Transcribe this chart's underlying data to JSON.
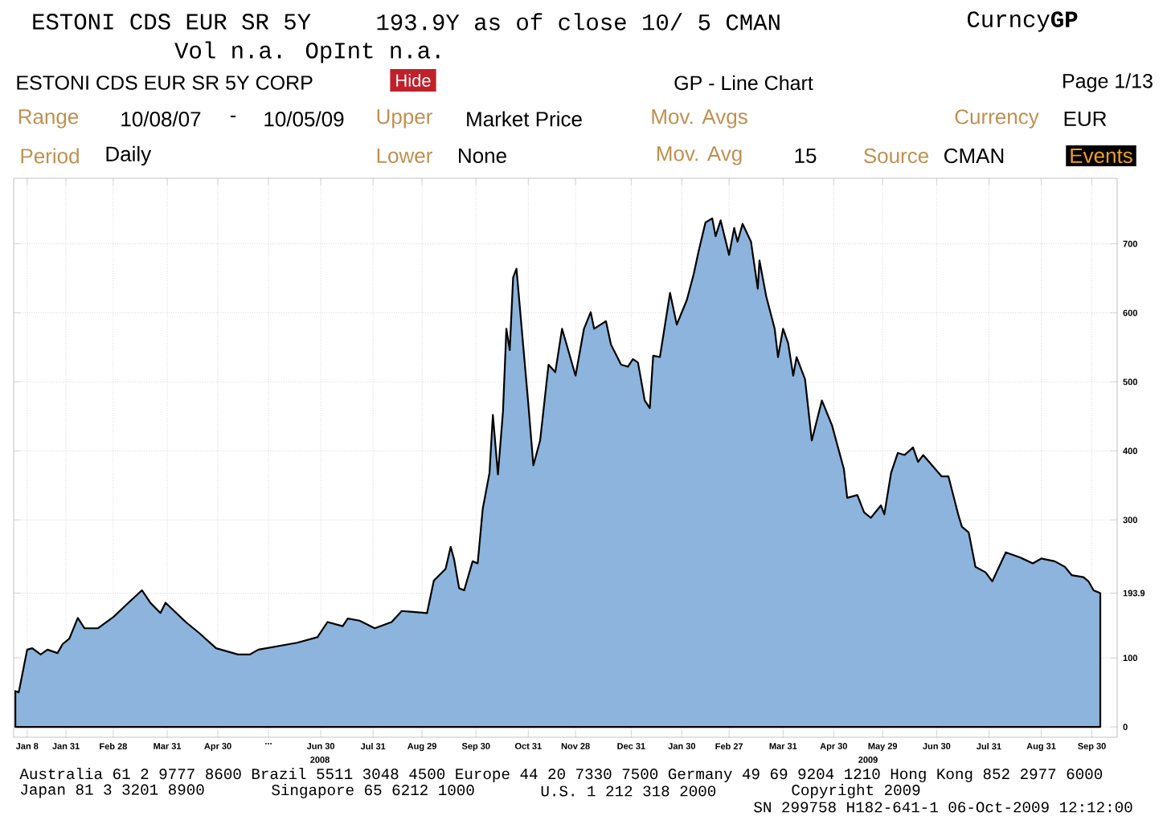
{
  "chart_data": {
    "type": "area",
    "title": "ESTONI CDS EUR SR 5Y",
    "subtitle": "Vol n.a. OpInt n.a.",
    "annotations": [
      "193.9Y as of close 10/ 5 CMAN",
      "Curncy**GP**",
      "ESTONI CDS EUR SR 5Y CORP",
      "Hide",
      "GP - Line Chart",
      "Page 1/13",
      "Range",
      "10/08/07",
      "-",
      "10/05/09",
      "Upper",
      "Market Price",
      "Mov. Avgs",
      "Currency",
      "EUR",
      "Period",
      "Daily",
      "Lower",
      "None",
      "Mov. Avg",
      "15",
      "Source",
      "CMAN",
      "Events",
      "Australia 61 2 9777 8600 Brazil 5511 3048 4500 Europe 44 20 7330 7500 Germany 49 69 9204 1210 Hong Kong 852 2977 6000",
      "Japan 81 3 3201 8900",
      "Singapore 65 6212 1000",
      "U.S. 1 212 318 2000",
      "Copyright 2009",
      "SN 299758 H182-641-1 06-Oct-2009 12:12:00",
      "2008",
      "2009"
    ],
    "xlim": [
      "2007-12-31",
      "2009-10-15"
    ],
    "ylim": [
      -15,
      795
    ],
    "xticks": [
      {
        "value": "2008-01-08",
        "label": "Jan 8"
      },
      {
        "value": "2008-01-31",
        "label": "Jan 31"
      },
      {
        "value": "2008-02-28",
        "label": "Feb 28"
      },
      {
        "value": "2008-03-31",
        "label": "Mar 31"
      },
      {
        "value": "2008-04-30",
        "label": "Apr 30"
      },
      {
        "value": "2008-05-30",
        "label": "..."
      },
      {
        "value": "2008-06-30",
        "label": "Jun 30"
      },
      {
        "value": "2008-07-31",
        "label": "Jul 31"
      },
      {
        "value": "2008-08-29",
        "label": "Aug 29"
      },
      {
        "value": "2008-09-30",
        "label": "Sep 30"
      },
      {
        "value": "2008-10-31",
        "label": "Oct 31"
      },
      {
        "value": "2008-11-28",
        "label": "Nov 28"
      },
      {
        "value": "2008-12-31",
        "label": "Dec 31"
      },
      {
        "value": "2009-01-30",
        "label": "Jan 30"
      },
      {
        "value": "2009-02-27",
        "label": "Feb 27"
      },
      {
        "value": "2009-03-31",
        "label": "Mar 31"
      },
      {
        "value": "2009-04-30",
        "label": "Apr 30"
      },
      {
        "value": "2009-05-29",
        "label": "May 29"
      },
      {
        "value": "2009-06-30",
        "label": "Jun 30"
      },
      {
        "value": "2009-07-31",
        "label": "Jul 31"
      },
      {
        "value": "2009-08-31",
        "label": "Aug 31"
      },
      {
        "value": "2009-09-30",
        "label": "Sep 30"
      }
    ],
    "yticks": [
      0,
      100,
      {
        "value": 193.9,
        "label": "193.9"
      },
      300,
      400,
      500,
      600,
      700
    ],
    "grid": true,
    "series": [
      {
        "color": "#8cb4dc",
        "x": [
          "2008-01-01",
          "2008-01-03",
          "2008-01-08",
          "2008-01-11",
          "2008-01-16",
          "2008-01-20",
          "2008-01-26",
          "2008-01-29",
          "2008-02-02",
          "2008-02-07",
          "2008-02-11",
          "2008-02-19",
          "2008-02-28",
          "2008-03-08",
          "2008-03-16",
          "2008-03-21",
          "2008-03-27",
          "2008-03-30",
          "2008-04-11",
          "2008-04-19",
          "2008-04-29",
          "2008-05-12",
          "2008-05-19",
          "2008-05-24",
          "2008-06-16",
          "2008-06-28",
          "2008-07-04",
          "2008-07-13",
          "2008-07-16",
          "2008-07-23",
          "2008-08-01",
          "2008-08-11",
          "2008-08-17",
          "2008-09-01",
          "2008-09-05",
          "2008-09-12",
          "2008-09-15",
          "2008-09-17",
          "2008-09-20",
          "2008-09-23",
          "2008-09-28",
          "2008-10-01",
          "2008-10-04",
          "2008-10-08",
          "2008-10-10",
          "2008-10-13",
          "2008-10-16",
          "2008-10-18",
          "2008-10-20",
          "2008-10-22",
          "2008-10-24",
          "2008-10-28",
          "2008-10-31",
          "2008-11-03",
          "2008-11-07",
          "2008-11-12",
          "2008-11-16",
          "2008-11-20",
          "2008-11-28",
          "2008-12-03",
          "2008-12-07",
          "2008-12-09",
          "2008-12-16",
          "2008-12-19",
          "2008-12-25",
          "2008-12-29",
          "2009-01-01",
          "2009-01-04",
          "2009-01-08",
          "2009-01-11",
          "2009-01-13",
          "2009-01-17",
          "2009-01-23",
          "2009-01-27",
          "2009-02-02",
          "2009-02-06",
          "2009-02-09",
          "2009-02-13",
          "2009-02-17",
          "2009-02-19",
          "2009-02-22",
          "2009-02-27",
          "2009-03-02",
          "2009-03-04",
          "2009-03-07",
          "2009-03-12",
          "2009-03-16",
          "2009-03-17",
          "2009-03-21",
          "2009-03-26",
          "2009-03-28",
          "2009-03-31",
          "2009-04-03",
          "2009-04-06",
          "2009-04-08",
          "2009-04-13",
          "2009-04-17",
          "2009-04-23",
          "2009-04-29",
          "2009-05-06",
          "2009-05-08",
          "2009-05-14",
          "2009-05-18",
          "2009-05-22",
          "2009-05-28",
          "2009-05-30",
          "2009-06-03",
          "2009-06-07",
          "2009-06-11",
          "2009-06-16",
          "2009-06-19",
          "2009-06-22",
          "2009-07-03",
          "2009-07-07",
          "2009-07-13",
          "2009-07-15",
          "2009-07-19",
          "2009-07-23",
          "2009-07-29",
          "2009-08-02",
          "2009-08-10",
          "2009-08-19",
          "2009-08-26",
          "2009-08-31",
          "2009-09-08",
          "2009-09-14",
          "2009-09-18",
          "2009-09-25",
          "2009-09-28",
          "2009-10-01",
          "2009-10-05"
        ],
        "values": [
          52,
          50,
          112,
          114,
          105,
          112,
          107,
          120,
          128,
          158,
          143,
          143,
          159,
          180,
          198,
          180,
          165,
          180,
          152,
          136,
          114,
          105,
          105,
          112,
          122,
          130,
          152,
          146,
          157,
          154,
          143,
          152,
          168,
          165,
          212,
          229,
          261,
          243,
          201,
          198,
          240,
          237,
          316,
          368,
          452,
          366,
          457,
          577,
          546,
          651,
          664,
          552,
          468,
          379,
          415,
          525,
          514,
          577,
          509,
          577,
          601,
          577,
          588,
          554,
          525,
          522,
          533,
          528,
          473,
          462,
          538,
          536,
          629,
          583,
          619,
          656,
          690,
          731,
          737,
          711,
          734,
          684,
          723,
          703,
          729,
          703,
          635,
          676,
          624,
          577,
          536,
          577,
          556,
          509,
          536,
          504,
          415,
          473,
          437,
          374,
          332,
          336,
          311,
          303,
          321,
          308,
          368,
          397,
          394,
          405,
          384,
          394,
          363,
          363,
          306,
          290,
          282,
          232,
          224,
          211,
          253,
          245,
          237,
          244,
          240,
          232,
          220,
          217,
          211,
          198,
          193.9
        ]
      }
    ]
  }
}
